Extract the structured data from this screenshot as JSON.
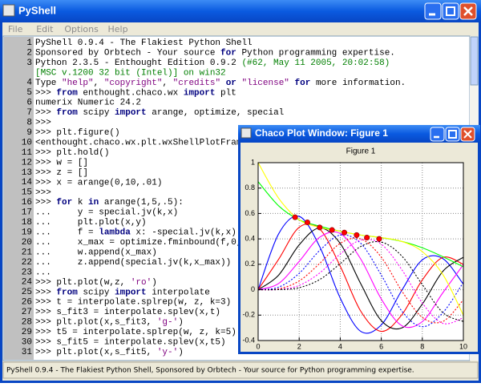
{
  "shell": {
    "title": "PyShell",
    "menu": [
      "File",
      "Edit",
      "Options",
      "Help"
    ],
    "lines": [
      {
        "n": 1,
        "tokens": [
          "PyShell 0.9.4 - The Flakiest Python Shell"
        ]
      },
      {
        "n": 2,
        "tokens": [
          "Sponsored by Orbtech - Your source ",
          {
            "text": "for",
            "color": "#00007f"
          },
          " Python programming expertise."
        ]
      },
      {
        "n": 3,
        "tokens": [
          "Python 2.3.5 - Enthought Edition 0.9.2 ",
          {
            "text": "(#62, May 11 2005, 20:02:58)",
            "color": "#007f00"
          }
        ]
      },
      {
        "tokens": [
          {
            "text": "[MSC v.1200 32 bit (Intel)] on win32",
            "color": "#007f00"
          }
        ]
      },
      {
        "n": 4,
        "tokens": [
          "Type ",
          {
            "text": "\"help\"",
            "color": "#7f007f"
          },
          ", ",
          {
            "text": "\"copyright\"",
            "color": "#7f007f"
          },
          ", ",
          {
            "text": "\"credits\"",
            "color": "#7f007f"
          },
          " ",
          {
            "text": "or",
            "color": "#00007f"
          },
          " ",
          {
            "text": "\"license\"",
            "color": "#7f007f"
          },
          " ",
          {
            "text": "for",
            "color": "#00007f"
          },
          " more information."
        ]
      },
      {
        "n": 5,
        "tokens": [
          ">>> ",
          {
            "text": "from",
            "color": "#00007f"
          },
          " enthought.chaco.wx ",
          {
            "text": "import",
            "color": "#00007f"
          },
          " plt"
        ]
      },
      {
        "n": 6,
        "tokens": [
          "numerix Numeric 24.2"
        ]
      },
      {
        "n": 7,
        "tokens": [
          ">>> ",
          {
            "text": "from",
            "color": "#00007f"
          },
          " scipy ",
          {
            "text": "import",
            "color": "#00007f"
          },
          " arange, optimize, special"
        ]
      },
      {
        "n": 8,
        "tokens": [
          ">>>"
        ]
      },
      {
        "n": 9,
        "tokens": [
          ">>> plt.figure()"
        ]
      },
      {
        "n": 10,
        "tokens": [
          "<enthought.chaco.wx.plt.wxShellPlotFrame"
        ]
      },
      {
        "n": 11,
        "tokens": [
          ">>> plt.hold()"
        ]
      },
      {
        "n": 12,
        "tokens": [
          ">>> w = []"
        ]
      },
      {
        "n": 13,
        "tokens": [
          ">>> z = []"
        ]
      },
      {
        "n": 14,
        "tokens": [
          ">>> x = arange(0,10,.01)"
        ]
      },
      {
        "n": 15,
        "tokens": [
          ">>>"
        ]
      },
      {
        "n": 16,
        "tokens": [
          ">>> ",
          {
            "text": "for",
            "color": "#00007f"
          },
          " k ",
          {
            "text": "in",
            "color": "#00007f"
          },
          " arange(1,5,.5):"
        ]
      },
      {
        "n": 17,
        "tokens": [
          "...     y = special.jv(k,x)"
        ]
      },
      {
        "n": 18,
        "tokens": [
          "...     plt.plot(x,y)"
        ]
      },
      {
        "n": 19,
        "tokens": [
          "...     f = ",
          {
            "text": "lambda",
            "color": "#00007f"
          },
          " x: -special.jv(k,x)"
        ]
      },
      {
        "n": 20,
        "tokens": [
          "...     x_max = optimize.fminbound(f,0,6)"
        ]
      },
      {
        "n": 21,
        "tokens": [
          "...     w.append(x_max)"
        ]
      },
      {
        "n": 22,
        "tokens": [
          "...     z.append(special.jv(k,x_max))"
        ]
      },
      {
        "n": 23,
        "tokens": [
          "..."
        ]
      },
      {
        "n": 24,
        "tokens": [
          ">>> plt.plot(w,z, ",
          {
            "text": "'ro'",
            "color": "#7f007f"
          },
          ")"
        ]
      },
      {
        "n": 25,
        "tokens": [
          ">>> ",
          {
            "text": "from",
            "color": "#00007f"
          },
          " scipy ",
          {
            "text": "import",
            "color": "#00007f"
          },
          " interpolate"
        ]
      },
      {
        "n": 26,
        "tokens": [
          ">>> t = interpolate.splrep(w, z, k=3)"
        ]
      },
      {
        "n": 27,
        "tokens": [
          ">>> s_fit3 = interpolate.splev(x,t)"
        ]
      },
      {
        "n": 28,
        "tokens": [
          ">>> plt.plot(x,s_fit3, ",
          {
            "text": "'g-'",
            "color": "#7f007f"
          },
          ")"
        ]
      },
      {
        "n": 29,
        "tokens": [
          ">>> t5 = interpolate.splrep(w, z, k=5)"
        ]
      },
      {
        "n": 30,
        "tokens": [
          ">>> s_fit5 = interpolate.splev(x,t5)"
        ]
      },
      {
        "n": 31,
        "tokens": [
          ">>> plt.plot(x,s_fit5, ",
          {
            "text": "'y-'",
            "color": "#7f007f"
          },
          ")"
        ]
      }
    ],
    "status": "PyShell 0.9.4 - The Flakiest Python Shell, Sponsored by Orbtech - Your source for Python programming expertise."
  },
  "plot_window": {
    "title": "Chaco Plot Window: Figure 1"
  },
  "chart_data": {
    "type": "line",
    "title": "Figure 1",
    "x": [
      0,
      1,
      2,
      3,
      4,
      5,
      6,
      7,
      8,
      9,
      10
    ],
    "series": [
      {
        "color": "#0000ff",
        "dotted": false,
        "values": [
          0,
          0.44,
          0.577,
          0.339,
          -0.066,
          -0.328,
          -0.277,
          -0.005,
          0.235,
          0.245,
          0.043
        ]
      },
      {
        "color": "#ff0000",
        "dotted": false,
        "values": [
          0,
          0.24,
          0.491,
          0.478,
          0.185,
          -0.169,
          -0.328,
          -0.198,
          0.077,
          0.254,
          0.199
        ]
      },
      {
        "color": "#000000",
        "dotted": false,
        "values": [
          0,
          0.115,
          0.353,
          0.486,
          0.364,
          0.047,
          -0.243,
          -0.301,
          -0.113,
          0.145,
          0.255
        ]
      },
      {
        "color": "#ff00ff",
        "dotted": false,
        "values": [
          0,
          0.049,
          0.223,
          0.413,
          0.442,
          0.241,
          -0.073,
          -0.283,
          -0.251,
          -0.024,
          0.197
        ]
      },
      {
        "color": "#0000ff",
        "dotted": true,
        "values": [
          0,
          0.02,
          0.129,
          0.309,
          0.43,
          0.365,
          0.115,
          -0.168,
          -0.291,
          -0.181,
          0.058
        ]
      },
      {
        "color": "#ff0000",
        "dotted": true,
        "values": [
          0,
          0.007,
          0.069,
          0.207,
          0.365,
          0.4,
          0.256,
          -0.01,
          -0.218,
          -0.25,
          -0.08
        ]
      },
      {
        "color": "#ff00ff",
        "dotted": true,
        "values": [
          0,
          0.002,
          0.034,
          0.132,
          0.281,
          0.391,
          0.358,
          0.158,
          -0.105,
          -0.265,
          -0.22
        ]
      },
      {
        "color": "#000000",
        "dotted": true,
        "values": [
          0,
          0.001,
          0.016,
          0.08,
          0.205,
          0.34,
          0.375,
          0.265,
          0.04,
          -0.18,
          -0.25
        ]
      },
      {
        "color": "#00ff00",
        "dotted": false,
        "values": [
          0.85,
          0.66,
          0.55,
          0.5,
          0.46,
          0.43,
          0.41,
          0.38,
          0.33,
          0.26,
          0.18
        ]
      },
      {
        "color": "#ffff00",
        "dotted": false,
        "values": [
          1,
          0.72,
          0.55,
          0.49,
          0.46,
          0.43,
          0.41,
          0.38,
          0.3,
          0.12,
          -0.2
        ]
      }
    ],
    "points": {
      "color": "#ff0000",
      "x": [
        1.8,
        2.4,
        3,
        3.6,
        4.2,
        4.8,
        5.3,
        5.9
      ],
      "y": [
        0.57,
        0.53,
        0.49,
        0.47,
        0.45,
        0.43,
        0.41,
        0.4
      ]
    },
    "xlim": [
      0,
      10
    ],
    "xticks": [
      0,
      2,
      4,
      6,
      8,
      10
    ],
    "ylim": [
      -0.4,
      1
    ],
    "yticks": [
      -0.4,
      -0.2,
      0,
      0.2,
      0.4,
      0.6,
      0.8,
      1
    ],
    "grid": true
  }
}
